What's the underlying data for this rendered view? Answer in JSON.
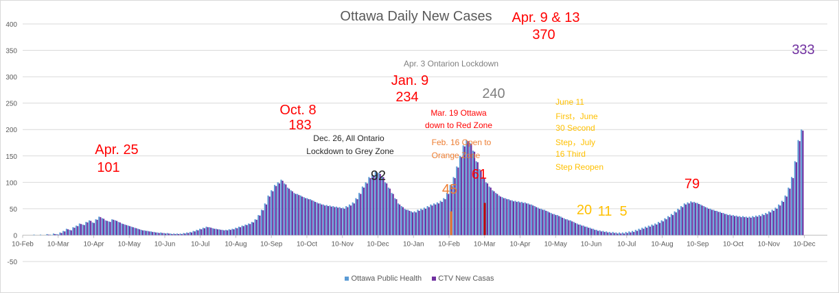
{
  "chart_data": {
    "type": "bar",
    "title": "Ottawa Daily New Cases",
    "ylim": [
      -50,
      400
    ],
    "ticks": [
      -50,
      0,
      50,
      100,
      150,
      200,
      250,
      300,
      350,
      400
    ],
    "x_tick_labels": [
      "10-Feb",
      "10-Mar",
      "10-Apr",
      "10-May",
      "10-Jun",
      "10-Jul",
      "10-Aug",
      "10-Sep",
      "10-Oct",
      "10-Nov",
      "10-Dec",
      "10-Jan",
      "10-Feb",
      "10-Mar",
      "10-Apr",
      "10-May",
      "10-Jun",
      "10-Jul",
      "10-Aug",
      "10-Sep",
      "10-Oct",
      "10-Nov",
      "10-Dec"
    ],
    "grid": true,
    "legend_position": "bottom",
    "series": [
      {
        "name": "Ottawa Public Health",
        "color": "#5b9bd5",
        "values": [
          0,
          0,
          1,
          0,
          1,
          0,
          2,
          1,
          3,
          2,
          5,
          8,
          12,
          10,
          15,
          18,
          22,
          20,
          25,
          28,
          24,
          30,
          35,
          32,
          28,
          26,
          30,
          28,
          25,
          22,
          20,
          18,
          16,
          14,
          12,
          10,
          9,
          8,
          7,
          6,
          5,
          5,
          4,
          4,
          3,
          3,
          3,
          3,
          4,
          5,
          6,
          8,
          10,
          12,
          14,
          16,
          15,
          13,
          12,
          11,
          10,
          10,
          11,
          12,
          14,
          16,
          18,
          20,
          22,
          25,
          30,
          38,
          48,
          60,
          75,
          85,
          95,
          100,
          105,
          98,
          90,
          85,
          80,
          78,
          75,
          72,
          70,
          68,
          65,
          62,
          60,
          58,
          57,
          56,
          55,
          54,
          53,
          52,
          55,
          58,
          62,
          70,
          80,
          92,
          100,
          110,
          115,
          120,
          118,
          112,
          100,
          90,
          80,
          70,
          60,
          55,
          50,
          48,
          45,
          45,
          48,
          50,
          52,
          55,
          58,
          60,
          62,
          65,
          70,
          80,
          95,
          110,
          130,
          150,
          170,
          180,
          175,
          160,
          140,
          125,
          110,
          100,
          92,
          85,
          80,
          75,
          72,
          70,
          68,
          66,
          65,
          64,
          63,
          62,
          60,
          58,
          55,
          52,
          50,
          48,
          45,
          42,
          40,
          38,
          35,
          32,
          30,
          28,
          25,
          22,
          20,
          18,
          16,
          14,
          12,
          10,
          9,
          8,
          7,
          6,
          6,
          5,
          5,
          5,
          6,
          7,
          8,
          10,
          12,
          14,
          16,
          18,
          20,
          22,
          25,
          28,
          32,
          36,
          40,
          45,
          50,
          55,
          60,
          62,
          64,
          63,
          61,
          58,
          55,
          52,
          50,
          48,
          46,
          44,
          42,
          40,
          39,
          38,
          37,
          36,
          36,
          35,
          35,
          36,
          37,
          38,
          40,
          42,
          45,
          48,
          52,
          58,
          65,
          75,
          90,
          110,
          140,
          180,
          200
        ]
      },
      {
        "name": "CTV New Casas",
        "color": "#7030a0",
        "values": [
          0,
          0,
          0,
          0,
          0,
          0,
          1,
          0,
          2,
          1,
          4,
          7,
          11,
          9,
          14,
          17,
          21,
          19,
          24,
          27,
          23,
          29,
          34,
          31,
          27,
          25,
          29,
          27,
          24,
          21,
          19,
          17,
          15,
          13,
          11,
          9,
          8,
          7,
          6,
          5,
          4,
          4,
          3,
          3,
          2,
          2,
          2,
          2,
          3,
          4,
          5,
          7,
          9,
          11,
          13,
          15,
          14,
          12,
          11,
          10,
          9,
          9,
          10,
          11,
          13,
          15,
          17,
          19,
          21,
          24,
          29,
          37,
          47,
          58,
          73,
          83,
          93,
          98,
          103,
          96,
          88,
          83,
          78,
          76,
          73,
          70,
          68,
          66,
          63,
          60,
          58,
          56,
          55,
          54,
          53,
          52,
          51,
          50,
          53,
          56,
          60,
          68,
          78,
          90,
          98,
          108,
          113,
          118,
          116,
          110,
          98,
          88,
          78,
          68,
          58,
          53,
          48,
          46,
          43,
          43,
          46,
          48,
          50,
          53,
          56,
          58,
          60,
          63,
          68,
          78,
          93,
          108,
          128,
          148,
          168,
          178,
          173,
          158,
          138,
          123,
          108,
          98,
          90,
          83,
          78,
          73,
          70,
          68,
          66,
          64,
          63,
          62,
          61,
          60,
          58,
          56,
          53,
          50,
          48,
          46,
          43,
          40,
          38,
          36,
          33,
          30,
          28,
          26,
          23,
          20,
          18,
          16,
          14,
          12,
          10,
          8,
          7,
          6,
          5,
          4,
          4,
          3,
          3,
          3,
          4,
          5,
          6,
          8,
          10,
          12,
          14,
          16,
          18,
          20,
          23,
          26,
          30,
          34,
          38,
          43,
          48,
          53,
          58,
          60,
          62,
          61,
          59,
          56,
          53,
          50,
          48,
          46,
          44,
          42,
          40,
          38,
          37,
          36,
          35,
          34,
          34,
          33,
          33,
          34,
          35,
          36,
          38,
          40,
          43,
          46,
          50,
          56,
          63,
          73,
          88,
          108,
          138,
          178,
          198
        ]
      }
    ],
    "annotations": [
      {
        "text": "Apr. 25",
        "color": "#ff0000"
      },
      {
        "text": "101",
        "color": "#ff0000"
      },
      {
        "text": "Oct. 8",
        "color": "#ff0000"
      },
      {
        "text": "183",
        "color": "#ff0000"
      },
      {
        "text": "Dec. 26, All Ontario",
        "color": "#262626"
      },
      {
        "text": "Lockdown to Grey Zone",
        "color": "#262626"
      },
      {
        "text": "92",
        "color": "#262626"
      },
      {
        "text": "Jan. 9",
        "color": "#ff0000"
      },
      {
        "text": "234",
        "color": "#ff0000"
      },
      {
        "text": "45",
        "color": "#ed7d31"
      },
      {
        "text": "Feb. 16 Open to",
        "color": "#ed7d31"
      },
      {
        "text": "Orange Zone",
        "color": "#ed7d31"
      },
      {
        "text": "Mar. 19 Ottawa",
        "color": "#ff0000"
      },
      {
        "text": "down to Red Zone",
        "color": "#ff0000"
      },
      {
        "text": "61",
        "color": "#ff0000"
      },
      {
        "text": "Apr. 3 Ontarion Lockdown",
        "color": "#7f7f7f"
      },
      {
        "text": "240",
        "color": "#7f7f7f"
      },
      {
        "text": "Apr. 9 & 13",
        "color": "#ff0000"
      },
      {
        "text": "370",
        "color": "#ff0000"
      },
      {
        "text": "June 11",
        "color": "#ffc000"
      },
      {
        "text": "First，June",
        "color": "#ffc000"
      },
      {
        "text": "30 Second",
        "color": "#ffc000"
      },
      {
        "text": "Step，July",
        "color": "#ffc000"
      },
      {
        "text": "16 Third",
        "color": "#ffc000"
      },
      {
        "text": "Step Reopen",
        "color": "#ffc000"
      },
      {
        "text": "20",
        "color": "#ffc000"
      },
      {
        "text": "11",
        "color": "#ffc000"
      },
      {
        "text": "5",
        "color": "#ffc000"
      },
      {
        "text": "79",
        "color": "#ff0000"
      },
      {
        "text": "333",
        "color": "#7030a0"
      }
    ]
  }
}
